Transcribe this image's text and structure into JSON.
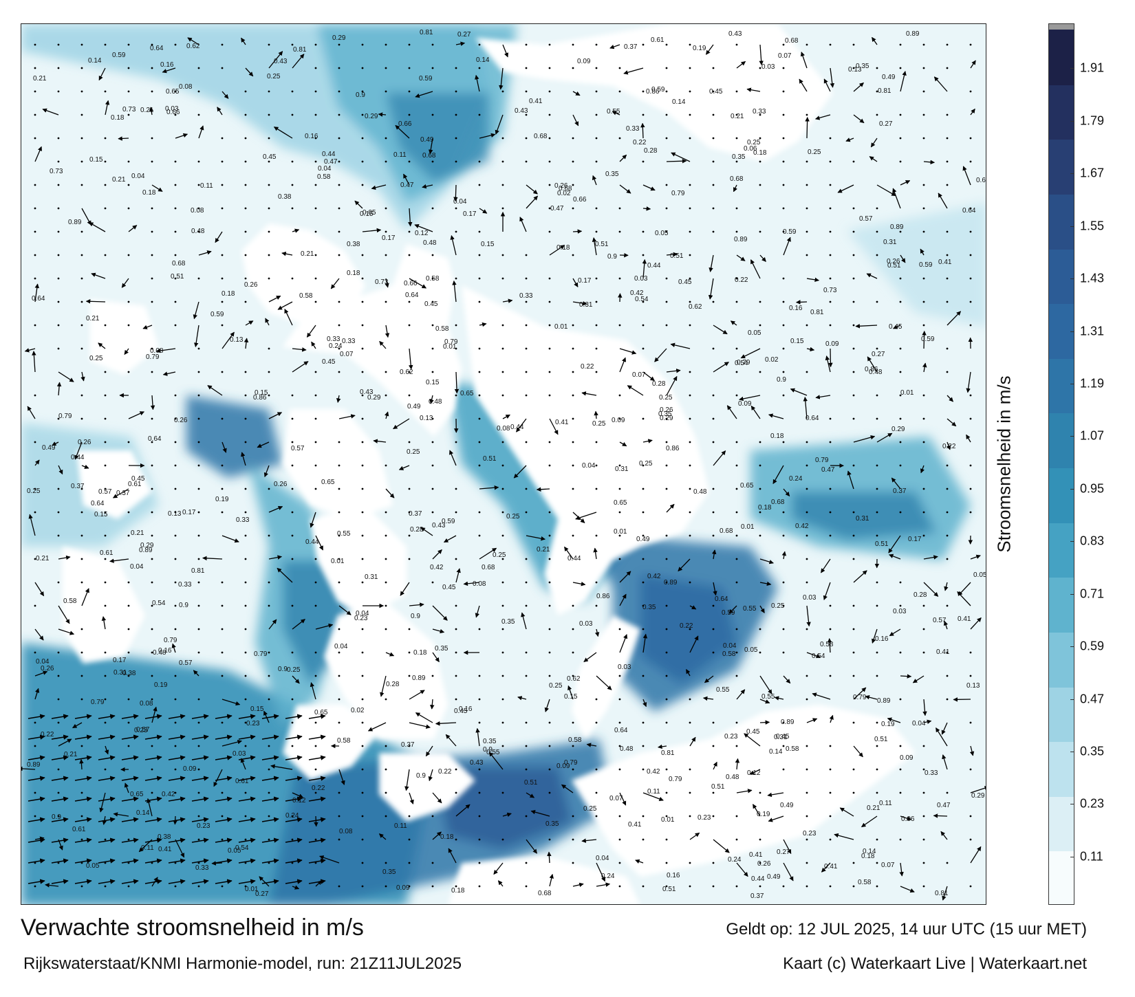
{
  "colors": {
    "land": "#ffffff",
    "water_low": "#e6f4f8",
    "water_mid": "#7cc3da",
    "water_high": "#2e8db8",
    "water_deep": "#245f9c",
    "arrow": "#000000"
  },
  "colorbar": {
    "label": "Stroomsnelheid in m/s",
    "ticks": [
      "0.11",
      "0.23",
      "0.35",
      "0.47",
      "0.59",
      "0.71",
      "0.83",
      "0.95",
      "1.07",
      "1.19",
      "1.31",
      "1.43",
      "1.55",
      "1.67",
      "1.79",
      "1.91"
    ],
    "range": [
      0,
      2.0
    ],
    "colors": [
      "#f7fcfd",
      "#dceff5",
      "#bde2ee",
      "#9ed3e4",
      "#7fc4da",
      "#5fb3ce",
      "#45a2c3",
      "#3391b7",
      "#2f83ae",
      "#2e75a8",
      "#2d68a1",
      "#2c5c96",
      "#2a4f87",
      "#283f73",
      "#23305f",
      "#1c2147"
    ]
  },
  "footer": {
    "title": "Verwachte stroomsnelheid in m/s",
    "subtitle": "Rijkswaterstaat/KNMI Harmonie-model, run: 21Z11JUL2025",
    "valid": "Geldt op: 12 JUL 2025, 14 uur UTC (15 uur MET)",
    "credit": "Kaart (c) Waterkaart Live | Waterkaart.net"
  },
  "map_labels": [
    "0.16",
    "0.21",
    "0.18",
    "0.25",
    "0.26",
    "0.24",
    "0.28",
    "0.19",
    "0.23",
    "0.49",
    "0.47",
    "0.59",
    "0.66",
    "0.64",
    "0.61",
    "0.57",
    "0.42",
    "0.27",
    "0.21",
    "0.18",
    "0.13",
    "0.15",
    "0.37",
    "0.29",
    "0.25",
    "0.12",
    "0.14",
    "0.08",
    "0.05",
    "0.03",
    "0.02",
    "0.01",
    "0.04",
    "0.06",
    "0.07",
    "0.09",
    "0.11",
    "0.17",
    "0.22",
    "0.31",
    "0.33",
    "0.35",
    "0.38",
    "0.41",
    "0.43",
    "0.44",
    "0.45",
    "0.48",
    "0.51",
    "0.54",
    "0.55",
    "0.58",
    "0.62",
    "0.65",
    "0.68",
    "0.73",
    "0.79",
    "0.81",
    "0.86",
    "0.89",
    "0.9"
  ]
}
